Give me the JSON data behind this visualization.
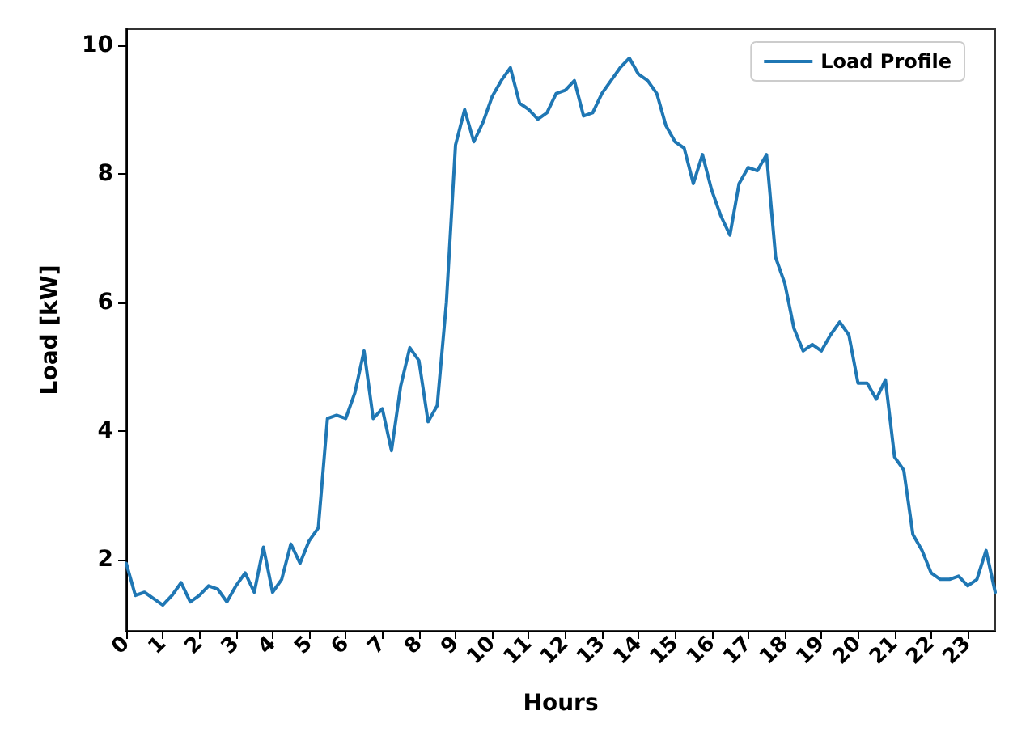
{
  "chart_data": {
    "type": "line",
    "xlabel": "Hours",
    "ylabel": "Load [kW]",
    "x": [
      0,
      0.25,
      0.5,
      0.75,
      1,
      1.25,
      1.5,
      1.75,
      2,
      2.25,
      2.5,
      2.75,
      3,
      3.25,
      3.5,
      3.75,
      4,
      4.25,
      4.5,
      4.75,
      5,
      5.25,
      5.5,
      5.75,
      6,
      6.25,
      6.5,
      6.75,
      7,
      7.25,
      7.5,
      7.75,
      8,
      8.25,
      8.5,
      8.75,
      9,
      9.25,
      9.5,
      9.75,
      10,
      10.25,
      10.5,
      10.75,
      11,
      11.25,
      11.5,
      11.75,
      12,
      12.25,
      12.5,
      12.75,
      13,
      13.25,
      13.5,
      13.75,
      14,
      14.25,
      14.5,
      14.75,
      15,
      15.25,
      15.5,
      15.75,
      16,
      16.25,
      16.5,
      16.75,
      17,
      17.25,
      17.5,
      17.75,
      18,
      18.25,
      18.5,
      18.75,
      19,
      19.25,
      19.5,
      19.75,
      20,
      20.25,
      20.5,
      20.75,
      21,
      21.25,
      21.5,
      21.75,
      22,
      22.25,
      22.5,
      22.75,
      23,
      23.25,
      23.5,
      23.75
    ],
    "series": [
      {
        "name": "Load Profile",
        "color": "#1f77b4",
        "values": [
          1.95,
          1.45,
          1.5,
          1.4,
          1.3,
          1.45,
          1.65,
          1.35,
          1.45,
          1.6,
          1.55,
          1.35,
          1.6,
          1.8,
          1.5,
          2.2,
          1.5,
          1.7,
          2.25,
          1.95,
          2.3,
          2.5,
          4.2,
          4.25,
          4.2,
          4.6,
          5.25,
          4.2,
          4.35,
          3.7,
          4.7,
          5.3,
          5.1,
          4.15,
          4.4,
          6.0,
          8.45,
          9.0,
          8.5,
          8.8,
          9.2,
          9.45,
          9.65,
          9.1,
          9.0,
          8.85,
          8.95,
          9.25,
          9.3,
          9.45,
          8.9,
          8.95,
          9.25,
          9.45,
          9.65,
          9.8,
          9.55,
          9.45,
          9.25,
          8.75,
          8.5,
          8.4,
          7.85,
          8.3,
          7.75,
          7.35,
          7.05,
          7.85,
          8.1,
          8.05,
          8.3,
          6.7,
          6.3,
          5.6,
          5.25,
          5.35,
          5.25,
          5.5,
          5.7,
          5.5,
          4.75,
          4.75,
          4.5,
          4.8,
          3.6,
          3.4,
          2.4,
          2.15,
          1.8,
          1.7,
          1.7,
          1.75,
          1.6,
          1.7,
          2.15,
          1.5
        ]
      }
    ],
    "xlim": [
      0,
      23.75
    ],
    "xticks": [
      0,
      1,
      2,
      3,
      4,
      5,
      6,
      7,
      8,
      9,
      10,
      11,
      12,
      13,
      14,
      15,
      16,
      17,
      18,
      19,
      20,
      21,
      22,
      23
    ],
    "ylim": [
      0.9,
      10.25
    ],
    "yticks": [
      2,
      4,
      6,
      8,
      10
    ],
    "grid": false,
    "legend": "top right",
    "marker": "none",
    "line_style": "solid"
  }
}
